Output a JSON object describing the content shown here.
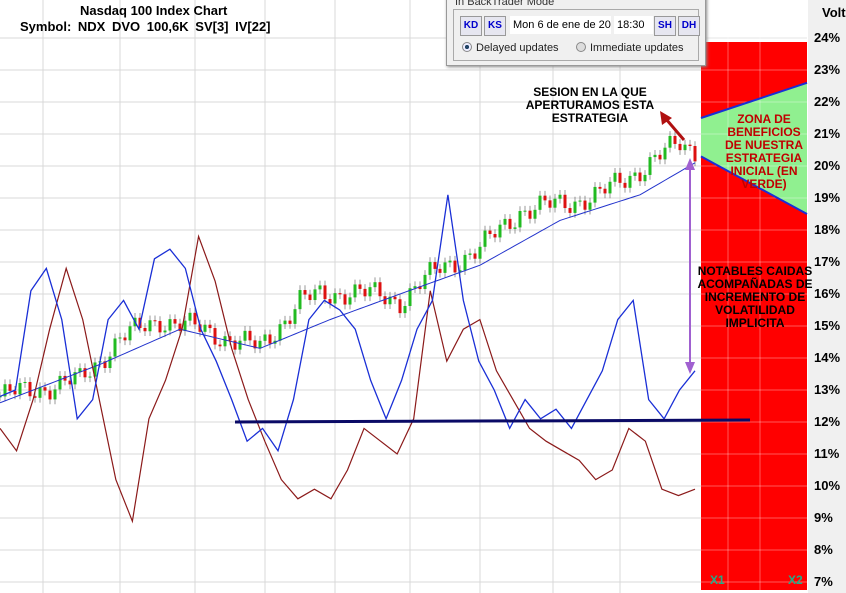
{
  "header": {
    "title": "Nasdaq 100 Index Chart",
    "symbol_line": "Symbol: NDX  DVO 100,6K  SV[3]  IV[22]"
  },
  "axis_label": "Volt",
  "dialog": {
    "title": "In BackTrader Mode",
    "btn_back_day": "KD",
    "btn_back_session": "KS",
    "date": "Mon 6 de ene de 20",
    "time": "18:30",
    "btn_fwd_session": "SH",
    "btn_fwd_day": "DH",
    "radio_delayed": "Delayed updates",
    "radio_immediate": "Immediate updates",
    "selected": "Delayed updates"
  },
  "annotations": {
    "session": "SESION EN LA QUE APERTURAMOS ESTA ESTRATEGIA",
    "zone": "ZONA DE BENEFICIOS DE NUESTRA ESTRATEGIA INICIAL (EN VERDE)",
    "drops": "NOTABLES CAIDAS ACOMPAÑADAS DE INCREMENTO DE VOLATILIDAD IMPLICITA"
  },
  "markers": {
    "x1": "X1",
    "x2": "X2"
  },
  "colors": {
    "iv": "#1a2fd6",
    "hv": "#8b1a1a",
    "ma": "#2233cc",
    "up": "#22bb22",
    "down": "#dd1111",
    "loss_zone": "#ff0000",
    "profit_zone": "#90f090",
    "support": "#0a0a66"
  },
  "chart_data": {
    "type": "line",
    "title": "Nasdaq 100 Index Chart",
    "ylabel": "Volt",
    "ylim": [
      7,
      24
    ],
    "yticks": [
      "24%",
      "23%",
      "22%",
      "21%",
      "20%",
      "19%",
      "18%",
      "17%",
      "16%",
      "15%",
      "14%",
      "13%",
      "12%",
      "11%",
      "10%",
      "9%",
      "8%",
      "7%"
    ],
    "sessions": 140,
    "series": [
      {
        "name": "IV",
        "values": [
          12.8,
          13.0,
          16.1,
          16.8,
          15.2,
          12.1,
          12.7,
          15.2,
          15.8,
          14.9,
          17.1,
          17.4,
          16.8,
          14.9,
          13.9,
          12.7,
          11.4,
          11.8,
          11.1,
          12.7,
          15.2,
          15.8,
          15.5,
          14.9,
          13.3,
          12.1,
          13.3,
          14.9,
          15.8,
          19.1,
          15.8,
          13.9,
          13.0,
          11.8,
          12.7,
          12.1,
          12.4,
          11.8,
          12.7,
          13.6,
          15.2,
          15.8,
          12.7,
          12.1,
          13.0,
          13.6
        ]
      },
      {
        "name": "HV",
        "values": [
          11.8,
          11.1,
          12.7,
          14.9,
          16.8,
          15.2,
          12.7,
          10.2,
          8.9,
          12.1,
          13.3,
          14.9,
          17.8,
          16.4,
          14.3,
          12.7,
          11.4,
          10.2,
          9.6,
          9.9,
          9.6,
          10.5,
          11.8,
          11.4,
          11.0,
          12.1,
          16.1,
          13.9,
          14.9,
          15.2,
          13.6,
          12.7,
          11.8,
          11.4,
          11.1,
          10.8,
          10.2,
          10.5,
          11.8,
          11.4,
          9.9,
          9.7,
          9.9
        ]
      },
      {
        "name": "Price",
        "points": [
          [
            0,
            12.8
          ],
          [
            16,
            13.3
          ],
          [
            24,
            14.6
          ],
          [
            32,
            15.2
          ],
          [
            40,
            14.9
          ],
          [
            46,
            14.6
          ],
          [
            52,
            14.3
          ],
          [
            60,
            15.8
          ],
          [
            70,
            16.1
          ],
          [
            80,
            15.8
          ],
          [
            88,
            16.8
          ],
          [
            96,
            17.4
          ],
          [
            104,
            18.6
          ],
          [
            112,
            18.8
          ],
          [
            120,
            19.1
          ],
          [
            128,
            19.9
          ],
          [
            136,
            20.7
          ],
          [
            139,
            20.5
          ]
        ]
      },
      {
        "name": "Moving average",
        "points": [
          [
            0,
            12.6
          ],
          [
            20,
            13.8
          ],
          [
            36,
            14.9
          ],
          [
            52,
            14.3
          ],
          [
            66,
            15.2
          ],
          [
            80,
            16.0
          ],
          [
            96,
            16.9
          ],
          [
            112,
            18.3
          ],
          [
            128,
            19.1
          ],
          [
            139,
            20.1
          ]
        ]
      }
    ],
    "support_level": 12.0,
    "profit_zone": {
      "upper": [
        21.5,
        22.6
      ],
      "lower": [
        20.3,
        18.5
      ]
    }
  }
}
